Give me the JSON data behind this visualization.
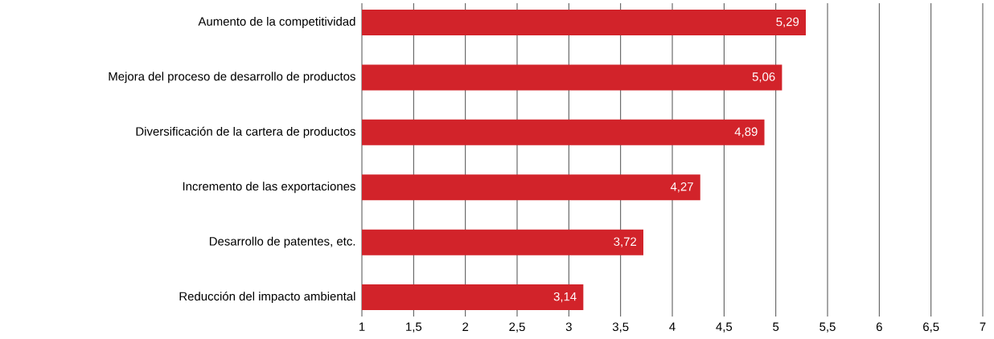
{
  "chart_data": {
    "type": "bar",
    "orientation": "horizontal",
    "categories": [
      "Aumento de la competitividad",
      "Mejora del proceso de desarrollo de productos",
      "Diversificación de la cartera  de productos",
      "Incremento de las exportaciones",
      "Desarrollo de patentes, etc.",
      "Reducción del impacto ambiental"
    ],
    "values": [
      5.29,
      5.06,
      4.89,
      4.27,
      3.72,
      3.14
    ],
    "value_labels": [
      "5,29",
      "5,06",
      "4,89",
      "4,27",
      "3,72",
      "3,14"
    ],
    "color": "#d2232a",
    "xlim": [
      1,
      7
    ],
    "xticks": [
      1,
      {
        "value": 1.5,
        "label": "1,5"
      },
      2,
      {
        "value": 2.5,
        "label": "2,5"
      },
      3,
      {
        "value": 3.5,
        "label": "3,5"
      },
      4,
      {
        "value": 4.5,
        "label": "4,5"
      },
      5,
      {
        "value": 5.5,
        "label": "5,5"
      },
      6,
      {
        "value": 6.5,
        "label": "6,5"
      },
      7
    ],
    "grid": "x"
  }
}
